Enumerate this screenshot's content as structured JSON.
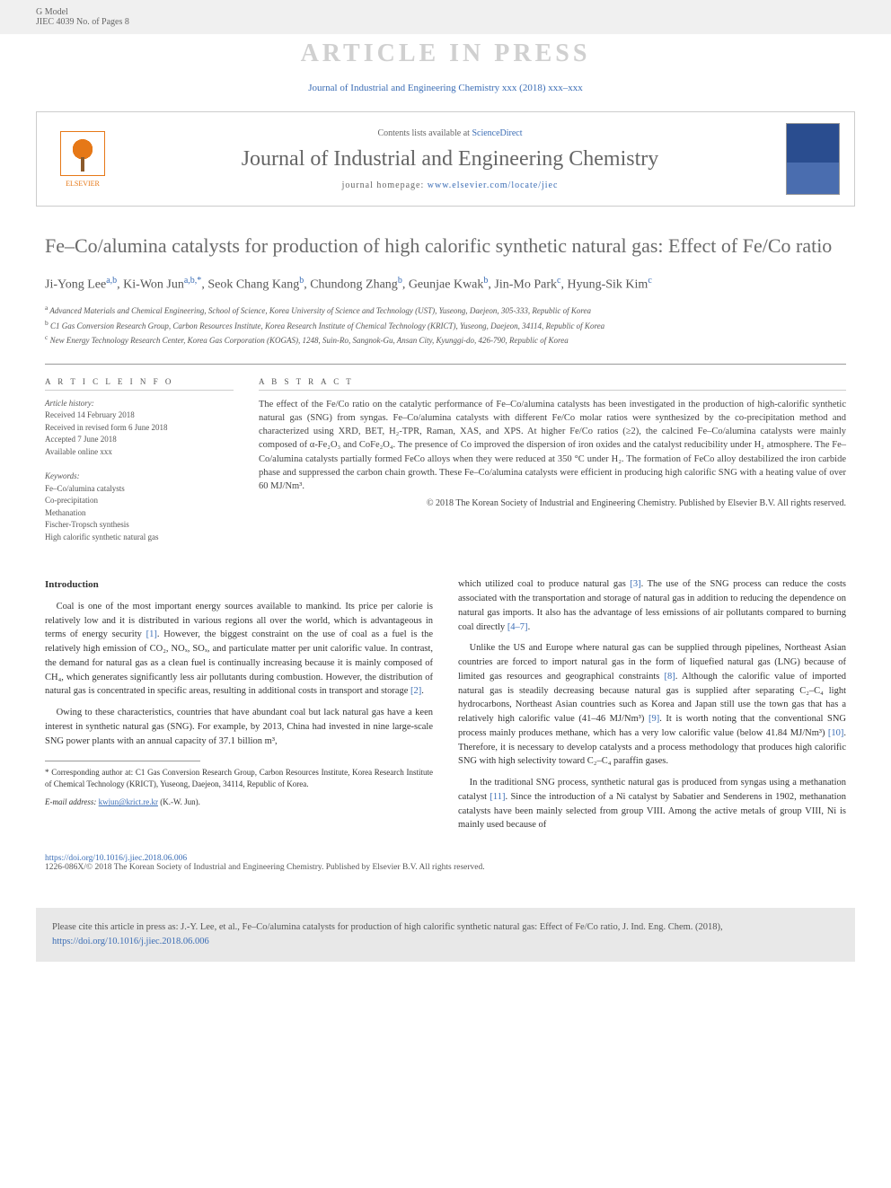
{
  "header": {
    "model_line": "G Model",
    "jiec_line": "JIEC 4039 No. of Pages 8",
    "watermark": "ARTICLE IN PRESS",
    "journal_ref": "Journal of Industrial and Engineering Chemistry xxx (2018) xxx–xxx"
  },
  "masthead": {
    "publisher": "ELSEVIER",
    "contents_prefix": "Contents lists available at ",
    "contents_link": "ScienceDirect",
    "journal_name": "Journal of Industrial and Engineering Chemistry",
    "homepage_prefix": "journal homepage: ",
    "homepage_url": "www.elsevier.com/locate/jiec"
  },
  "article": {
    "title": "Fe–Co/alumina catalysts for production of high calorific synthetic natural gas: Effect of Fe/Co ratio",
    "authors_html": "Ji-Yong Lee<sup>a,b</sup>, Ki-Won Jun<sup>a,b,*</sup>, Seok Chang Kang<sup>b</sup>, Chundong Zhang<sup>b</sup>, Geunjae Kwak<sup>b</sup>, Jin-Mo Park<sup>c</sup>, Hyung-Sik Kim<sup>c</sup>",
    "affiliations": [
      "<sup>a</sup> Advanced Materials and Chemical Engineering, School of Science, Korea University of Science and Technology (UST), Yuseong, Daejeon, 305-333, Republic of Korea",
      "<sup>b</sup> C1 Gas Conversion Research Group, Carbon Resources Institute, Korea Research Institute of Chemical Technology (KRICT), Yuseong, Daejeon, 34114, Republic of Korea",
      "<sup>c</sup> New Energy Technology Research Center, Korea Gas Corporation (KOGAS), 1248, Suin-Ro, Sangnok-Gu, Ansan City, Kyunggi-do, 426-790, Republic of Korea"
    ]
  },
  "info": {
    "heading": "A R T I C L E   I N F O",
    "history_label": "Article history:",
    "received": "Received 14 February 2018",
    "revised": "Received in revised form 6 June 2018",
    "accepted": "Accepted 7 June 2018",
    "online": "Available online xxx",
    "keywords_label": "Keywords:",
    "keywords": [
      "Fe–Co/alumina catalysts",
      "Co-precipitation",
      "Methanation",
      "Fischer-Tropsch synthesis",
      "High calorific synthetic natural gas"
    ]
  },
  "abstract": {
    "heading": "A B S T R A C T",
    "text": "The effect of the Fe/Co ratio on the catalytic performance of Fe–Co/alumina catalysts has been investigated in the production of high-calorific synthetic natural gas (SNG) from syngas. Fe–Co/alumina catalysts with different Fe/Co molar ratios were synthesized by the co-precipitation method and characterized using XRD, BET, H₂-TPR, Raman, XAS, and XPS. At higher Fe/Co ratios (≥2), the calcined Fe–Co/alumina catalysts were mainly composed of α-Fe₂O₃ and CoFe₂O₄. The presence of Co improved the dispersion of iron oxides and the catalyst reducibility under H₂ atmosphere. The Fe–Co/alumina catalysts partially formed FeCo alloys when they were reduced at 350 °C under H₂. The formation of FeCo alloy destabilized the iron carbide phase and suppressed the carbon chain growth. These Fe–Co/alumina catalysts were efficient in producing high calorific SNG with a heating value of over 60 MJ/Nm³.",
    "copyright": "© 2018 The Korean Society of Industrial and Engineering Chemistry. Published by Elsevier B.V. All rights reserved."
  },
  "body": {
    "intro_heading": "Introduction",
    "p1": "Coal is one of the most important energy sources available to mankind. Its price per calorie is relatively low and it is distributed in various regions all over the world, which is advantageous in terms of energy security [1]. However, the biggest constraint on the use of coal as a fuel is the relatively high emission of CO₂, NOₓ, SOₓ, and particulate matter per unit calorific value. In contrast, the demand for natural gas as a clean fuel is continually increasing because it is mainly composed of CH₄, which generates significantly less air pollutants during combustion. However, the distribution of natural gas is concentrated in specific areas, resulting in additional costs in transport and storage [2].",
    "p2": "Owing to these characteristics, countries that have abundant coal but lack natural gas have a keen interest in synthetic natural gas (SNG). For example, by 2013, China had invested in nine large-scale SNG power plants with an annual capacity of 37.1 billion m³,",
    "p3": "which utilized coal to produce natural gas [3]. The use of the SNG process can reduce the costs associated with the transportation and storage of natural gas in addition to reducing the dependence on natural gas imports. It also has the advantage of less emissions of air pollutants compared to burning coal directly [4–7].",
    "p4": "Unlike the US and Europe where natural gas can be supplied through pipelines, Northeast Asian countries are forced to import natural gas in the form of liquefied natural gas (LNG) because of limited gas resources and geographical constraints [8]. Although the calorific value of imported natural gas is steadily decreasing because natural gas is supplied after separating C₂–C₄ light hydrocarbons, Northeast Asian countries such as Korea and Japan still use the town gas that has a relatively high calorific value (41–46 MJ/Nm³) [9]. It is worth noting that the conventional SNG process mainly produces methane, which has a very low calorific value (below 41.84 MJ/Nm³) [10]. Therefore, it is necessary to develop catalysts and a process methodology that produces high calorific SNG with high selectivity toward C₂–C₄ paraffin gases.",
    "p5": "In the traditional SNG process, synthetic natural gas is produced from syngas using a methanation catalyst [11]. Since the introduction of a Ni catalyst by Sabatier and Senderens in 1902, methanation catalysts have been mainly selected from group VIII. Among the active metals of group VIII, Ni is mainly used because of",
    "footnote_corr": "* Corresponding author at: C1 Gas Conversion Research Group, Carbon Resources Institute, Korea Research Institute of Chemical Technology (KRICT), Yuseong, Daejeon, 34114, Republic of Korea.",
    "footnote_email_label": "E-mail address: ",
    "footnote_email": "kwjun@krict.re.kr",
    "footnote_email_suffix": " (K.-W. Jun)."
  },
  "doi": {
    "url": "https://doi.org/10.1016/j.jiec.2018.06.006",
    "issn_line": "1226-086X/© 2018 The Korean Society of Industrial and Engineering Chemistry. Published by Elsevier B.V. All rights reserved."
  },
  "citebox": {
    "text_prefix": "Please cite this article in press as: J.-Y. Lee, et al., Fe–Co/alumina catalysts for production of high calorific synthetic natural gas: Effect of Fe/Co ratio, J. Ind. Eng. Chem. (2018), ",
    "link": "https://doi.org/10.1016/j.jiec.2018.06.006"
  },
  "colors": {
    "link": "#3b6db5",
    "watermark": "#d0d0d0",
    "elsevier_orange": "#e67817",
    "heading_gray": "#6a6a6a"
  }
}
